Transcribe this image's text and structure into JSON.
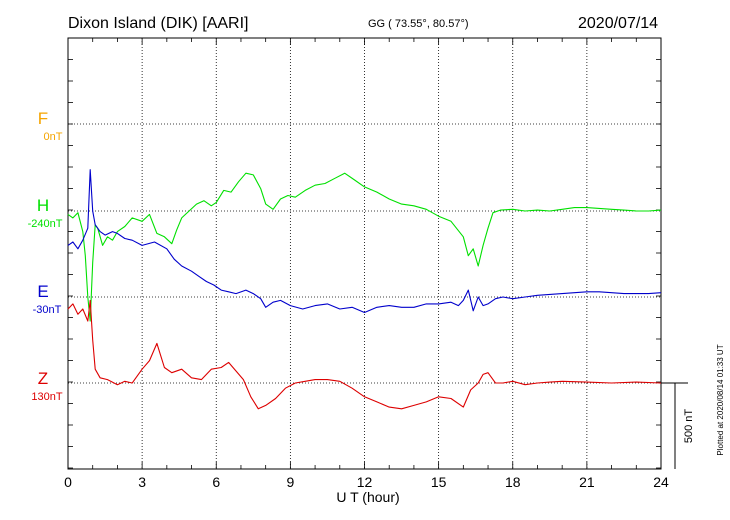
{
  "header": {
    "station": "Dixon Island (DIK)  [AARI]",
    "coords": "GG ( 73.55°,  80.57°)",
    "date": "2020/07/14"
  },
  "footer_note": "Plotted at 2020/08/14 01:33 UT",
  "scale_label": "500 nT",
  "colors": {
    "F": "#f5a400",
    "H": "#00e000",
    "E": "#0000cc",
    "Z": "#dd0000",
    "grid": "#000000"
  },
  "components": [
    {
      "key": "F",
      "letter": "F",
      "baseline": "0nT"
    },
    {
      "key": "H",
      "letter": "H",
      "baseline": "-240nT"
    },
    {
      "key": "E",
      "letter": "E",
      "baseline": "-30nT"
    },
    {
      "key": "Z",
      "letter": "Z",
      "baseline": "130nT"
    }
  ],
  "chart_data": {
    "type": "line",
    "title": "Dixon Island (DIK)  [AARI]",
    "xlabel": "U T (hour)",
    "ylabel": "",
    "xlim": [
      0,
      24
    ],
    "ylim": [
      -950,
      1300
    ],
    "x_ticks": [
      "0",
      "3",
      "6",
      "9",
      "12",
      "15",
      "18",
      "21",
      "24"
    ],
    "grid": true,
    "scale_bar_nT": 500,
    "series": [
      {
        "name": "H",
        "x": [
          0,
          0.2,
          0.4,
          0.6,
          0.7,
          0.8,
          0.9,
          1.0,
          1.1,
          1.2,
          1.4,
          1.6,
          1.8,
          2.0,
          2.3,
          2.6,
          3.0,
          3.3,
          3.6,
          3.9,
          4.2,
          4.4,
          4.6,
          4.9,
          5.2,
          5.5,
          5.8,
          6.0,
          6.3,
          6.6,
          6.9,
          7.2,
          7.5,
          7.8,
          8.0,
          8.3,
          8.6,
          8.9,
          9.2,
          9.6,
          10.0,
          10.4,
          10.8,
          11.2,
          11.6,
          12.0,
          12.5,
          13.0,
          13.5,
          14.0,
          14.5,
          15.0,
          15.5,
          16.0,
          16.2,
          16.4,
          16.6,
          16.8,
          17.0,
          17.2,
          17.5,
          18.0,
          18.5,
          19.0,
          19.5,
          20.0,
          20.5,
          21.0,
          21.5,
          22.0,
          22.5,
          23.0,
          23.5,
          24.0
        ],
        "values": [
          -20,
          -40,
          -10,
          -120,
          -260,
          -500,
          -640,
          -300,
          -80,
          -100,
          -200,
          -150,
          -170,
          -120,
          -90,
          -40,
          -60,
          -20,
          -130,
          -150,
          -190,
          -110,
          -40,
          0,
          40,
          60,
          30,
          50,
          120,
          110,
          170,
          220,
          210,
          130,
          40,
          10,
          70,
          90,
          80,
          120,
          150,
          160,
          190,
          220,
          180,
          140,
          110,
          70,
          40,
          30,
          10,
          -30,
          -60,
          -150,
          -260,
          -220,
          -320,
          -200,
          -100,
          -10,
          5,
          10,
          0,
          5,
          0,
          10,
          20,
          20,
          15,
          10,
          5,
          0,
          0,
          5
        ]
      },
      {
        "name": "E",
        "x": [
          0,
          0.2,
          0.4,
          0.6,
          0.8,
          0.9,
          1.0,
          1.1,
          1.3,
          1.5,
          1.8,
          2.0,
          2.3,
          2.6,
          3.0,
          3.5,
          4.0,
          4.3,
          4.6,
          5.0,
          5.3,
          5.6,
          5.9,
          6.2,
          6.5,
          6.8,
          7.2,
          7.5,
          7.8,
          8.0,
          8.3,
          8.6,
          9.0,
          9.5,
          10.0,
          10.5,
          11.0,
          11.5,
          12.0,
          12.5,
          13.0,
          13.5,
          14.0,
          14.5,
          15.0,
          15.5,
          15.8,
          16.0,
          16.2,
          16.4,
          16.6,
          16.8,
          17.0,
          17.3,
          17.6,
          18.0,
          18.5,
          19.0,
          19.5,
          20.0,
          20.5,
          21.0,
          21.5,
          22.0,
          22.5,
          23.0,
          23.5,
          24.0
        ],
        "values": [
          300,
          320,
          280,
          330,
          400,
          740,
          500,
          420,
          380,
          360,
          380,
          370,
          340,
          330,
          300,
          320,
          280,
          220,
          180,
          150,
          120,
          90,
          70,
          40,
          30,
          20,
          40,
          20,
          -10,
          -60,
          -30,
          -20,
          -50,
          -70,
          -50,
          -40,
          -70,
          -60,
          -90,
          -60,
          -50,
          -60,
          -60,
          -40,
          -40,
          -30,
          -50,
          -20,
          40,
          -80,
          0,
          -50,
          -40,
          -10,
          0,
          -10,
          0,
          10,
          15,
          20,
          25,
          30,
          30,
          25,
          20,
          20,
          20,
          25
        ]
      },
      {
        "name": "Z",
        "x": [
          0,
          0.2,
          0.4,
          0.6,
          0.8,
          0.9,
          1.0,
          1.1,
          1.3,
          1.6,
          2.0,
          2.3,
          2.6,
          3.0,
          3.3,
          3.6,
          3.9,
          4.2,
          4.6,
          5.0,
          5.4,
          5.8,
          6.2,
          6.5,
          6.8,
          7.1,
          7.4,
          7.7,
          8.0,
          8.4,
          8.8,
          9.2,
          9.6,
          10.0,
          10.5,
          11.0,
          11.5,
          12.0,
          12.5,
          13.0,
          13.5,
          14.0,
          14.5,
          15.0,
          15.5,
          16.0,
          16.3,
          16.6,
          16.8,
          17.0,
          17.3,
          17.6,
          18.0,
          18.5,
          19.0,
          19.5,
          20.0,
          21.0,
          22.0,
          23.0,
          24.0
        ],
        "values": [
          430,
          460,
          400,
          430,
          360,
          480,
          250,
          80,
          30,
          20,
          -10,
          10,
          0,
          80,
          130,
          230,
          90,
          60,
          80,
          30,
          20,
          80,
          90,
          120,
          70,
          20,
          -80,
          -150,
          -130,
          -90,
          -30,
          0,
          10,
          20,
          20,
          10,
          -30,
          -80,
          -110,
          -140,
          -150,
          -130,
          -110,
          -80,
          -90,
          -140,
          -40,
          0,
          50,
          60,
          0,
          0,
          10,
          -10,
          0,
          5,
          10,
          5,
          0,
          5,
          0
        ]
      }
    ]
  }
}
